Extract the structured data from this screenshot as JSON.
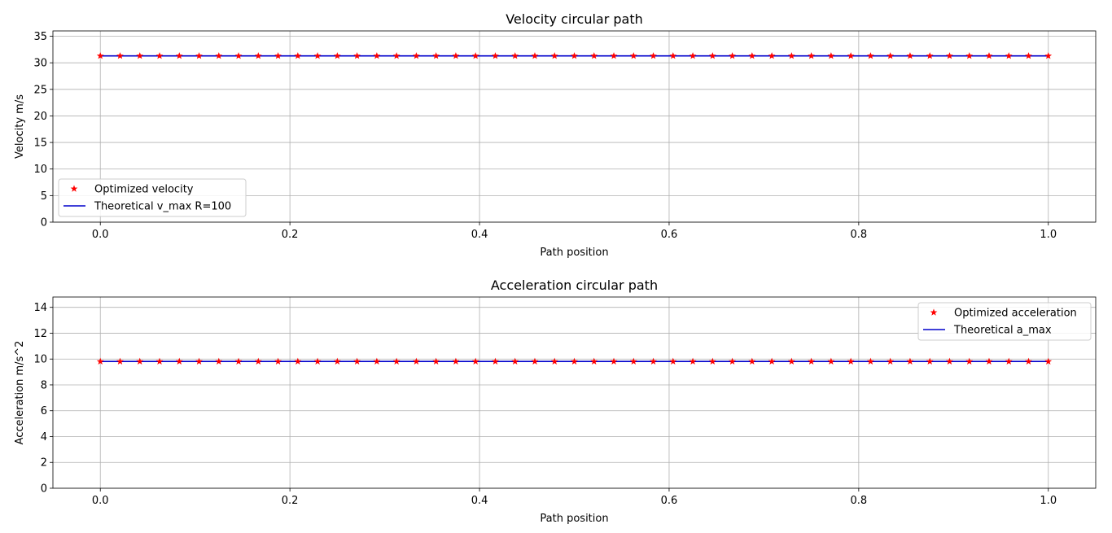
{
  "chart_data": [
    {
      "type": "line",
      "title": "Velocity circular path",
      "xlabel": "Path position",
      "ylabel": "Velocity m/s",
      "xlim": [
        -0.05,
        1.05
      ],
      "ylim": [
        0,
        36
      ],
      "xticks": [
        "0.0",
        "0.2",
        "0.4",
        "0.6",
        "0.8",
        "1.0"
      ],
      "yticks": [
        "0",
        "5",
        "10",
        "15",
        "20",
        "25",
        "30",
        "35"
      ],
      "grid": true,
      "legend_position": "lower-left",
      "series": [
        {
          "name": "Optimized velocity",
          "style": "markers",
          "marker": "star",
          "color": "#ff0000",
          "value": 31.3,
          "count": 49
        },
        {
          "name": "Theoretical v_max R=100",
          "style": "line",
          "color": "#0000cc",
          "value": 31.3
        }
      ],
      "x_range": [
        0,
        1
      ]
    },
    {
      "type": "line",
      "title": "Acceleration circular path",
      "xlabel": "Path position",
      "ylabel": "Acceleration m/s^2",
      "xlim": [
        -0.05,
        1.05
      ],
      "ylim": [
        0,
        14.8
      ],
      "xticks": [
        "0.0",
        "0.2",
        "0.4",
        "0.6",
        "0.8",
        "1.0"
      ],
      "yticks": [
        "0",
        "2",
        "4",
        "6",
        "8",
        "10",
        "12",
        "14"
      ],
      "grid": true,
      "legend_position": "upper-right",
      "series": [
        {
          "name": "Optimized acceleration",
          "style": "markers",
          "marker": "star",
          "color": "#ff0000",
          "value": 9.81,
          "count": 49
        },
        {
          "name": "Theoretical a_max",
          "style": "line",
          "color": "#0000cc",
          "value": 9.81
        }
      ],
      "x_range": [
        0,
        1
      ]
    }
  ]
}
